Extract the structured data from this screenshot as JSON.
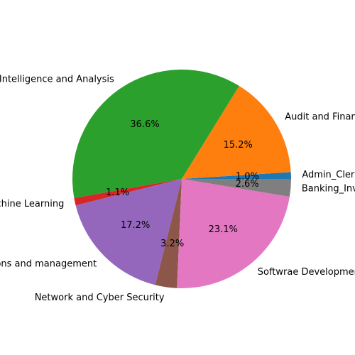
{
  "chart_data": {
    "type": "pie",
    "start_angle": 0,
    "direction": "counterclockwise",
    "slices": [
      {
        "label": "Admin_Clerical",
        "value": 1.0,
        "pct_label": "1.0%",
        "color": "#1f77b4"
      },
      {
        "label": "Audit and Finance",
        "value": 15.2,
        "pct_label": "15.2%",
        "color": "#ff7f0e"
      },
      {
        "label": "Business Intelligence and Analysis",
        "value": 36.6,
        "pct_label": "36.6%",
        "color": "#2ca02c"
      },
      {
        "label": "Data Science and Machine Learning",
        "value": 1.1,
        "pct_label": "1.1%",
        "color": "#d62728"
      },
      {
        "label": "Operations and management",
        "value": 17.2,
        "pct_label": "17.2%",
        "color": "#9467bd"
      },
      {
        "label": "Network and Cyber Security",
        "value": 3.2,
        "pct_label": "3.2%",
        "color": "#8c564b"
      },
      {
        "label": "Softwrae Development",
        "value": 23.1,
        "pct_label": "23.1%",
        "color": "#e377c2"
      },
      {
        "label": "Banking_Investment",
        "value": 2.6,
        "pct_label": "2.6%",
        "color": "#7f7f7f"
      }
    ]
  }
}
